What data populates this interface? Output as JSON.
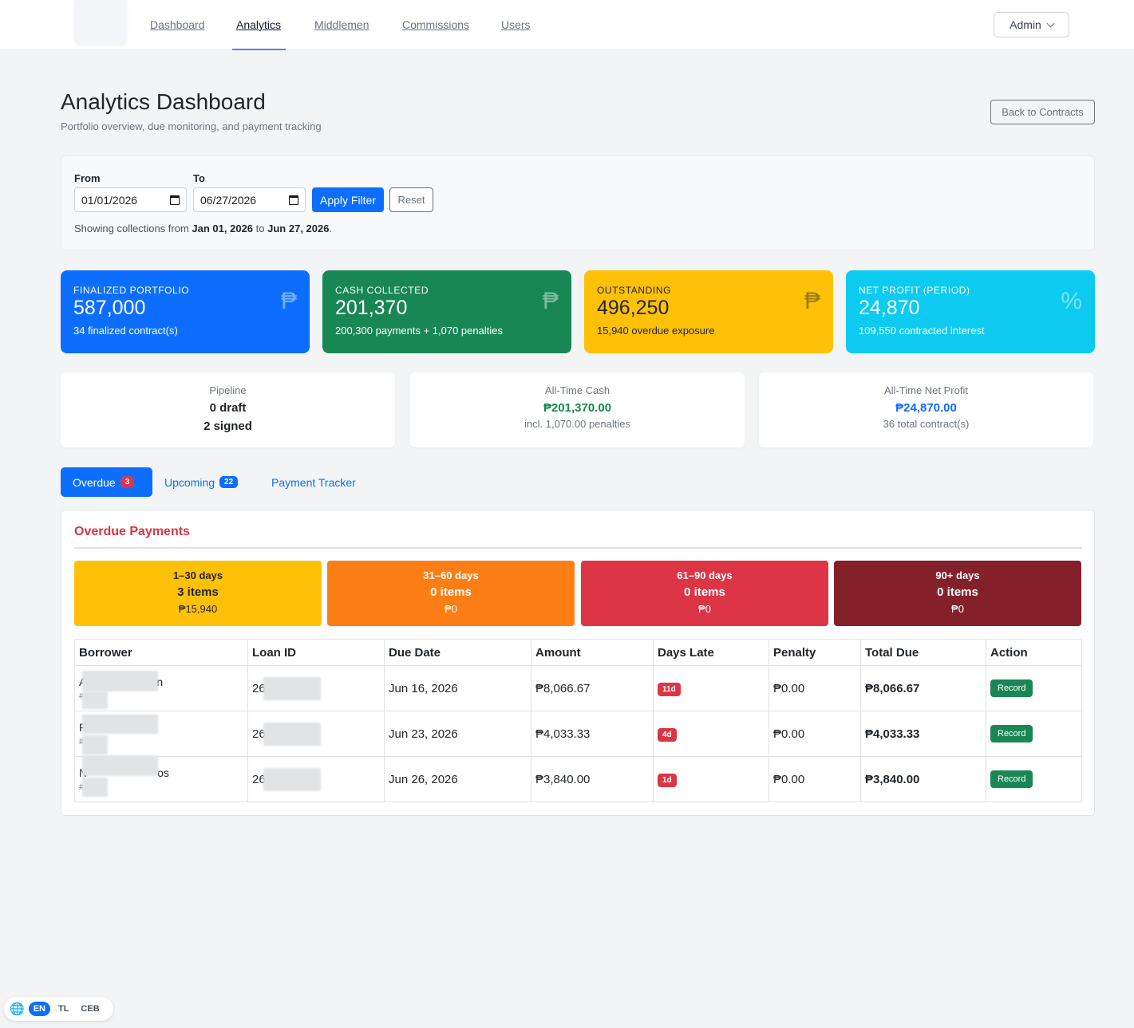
{
  "nav": {
    "links": [
      "Dashboard",
      "Analytics",
      "Middlemen",
      "Commissions",
      "Users"
    ],
    "active": "Analytics",
    "admin_label": "Admin"
  },
  "header": {
    "title": "Analytics Dashboard",
    "subtitle": "Portfolio overview, due monitoring, and payment tracking",
    "back_button": "Back to Contracts"
  },
  "filter": {
    "from_label": "From",
    "to_label": "To",
    "from_value": "01/01/2026",
    "to_value": "06/27/2026",
    "apply_label": "Apply Filter",
    "reset_label": "Reset",
    "note_prefix": "Showing collections from",
    "note_from": "Jan 01, 2026",
    "note_mid": "to",
    "note_to": "Jun 27, 2026",
    "note_suffix": "."
  },
  "stats": [
    {
      "label": "FINALIZED PORTFOLIO",
      "value": "587,000",
      "sub": "34 finalized contract(s)",
      "icon": "peso-icon",
      "glyph": "₱",
      "color": "#0d6efd"
    },
    {
      "label": "CASH COLLECTED",
      "value": "201,370",
      "sub": "200,300 payments + 1,070 penalties",
      "icon": "peso-icon",
      "glyph": "₱",
      "color": "#198754"
    },
    {
      "label": "OUTSTANDING",
      "value": "496,250",
      "sub": "15,940 overdue exposure",
      "icon": "peso-icon",
      "glyph": "₱",
      "color": "#ffc107"
    },
    {
      "label": "NET PROFIT (PERIOD)",
      "value": "24,870",
      "sub": "109,550 contracted interest",
      "icon": "percent-icon",
      "glyph": "%",
      "color": "#0dcaf0"
    }
  ],
  "mini": {
    "pipeline": {
      "title": "Pipeline",
      "line1": "0 draft",
      "line2": "2 signed"
    },
    "all_time_cash": {
      "title": "All-Time Cash",
      "value": "₱201,370.00",
      "sub": "incl. 1,070.00 penalties",
      "value_color": "#198754"
    },
    "all_time_profit": {
      "title": "All-Time Net Profit",
      "value": "₱24,870.00",
      "sub": "36 total contract(s)",
      "value_color": "#0d6efd"
    }
  },
  "tabs": [
    {
      "label": "Overdue",
      "count": "3",
      "active": true
    },
    {
      "label": "Upcoming",
      "count": "22",
      "active": false
    },
    {
      "label": "Payment Tracker",
      "count": "",
      "active": false
    }
  ],
  "overdue": {
    "title": "Overdue Payments",
    "buckets": [
      {
        "range": "1–30 days",
        "items": "3 items",
        "amount": "₱15,940",
        "color": "#ffc107"
      },
      {
        "range": "31–60 days",
        "items": "0 items",
        "amount": "₱0",
        "color": "#fd7e14"
      },
      {
        "range": "61–90 days",
        "items": "0 items",
        "amount": "₱0",
        "color": "#dc3545"
      },
      {
        "range": "90+ days",
        "items": "0 items",
        "amount": "₱0",
        "color": "#842029"
      }
    ],
    "columns": [
      "Borrower",
      "Loan ID",
      "Due Date",
      "Amount",
      "Days Late",
      "Penalty",
      "Total Due",
      "Action"
    ],
    "rows": [
      {
        "borrower_start": "A",
        "borrower_end": "n",
        "borrower_id": "#",
        "loan_prefix": "26",
        "due": "Jun 16, 2026",
        "amount": "₱8,066.67",
        "late": "11d",
        "penalty": "₱0.00",
        "total": "₱8,066.67",
        "action": "Record"
      },
      {
        "borrower_start": "F",
        "borrower_end": "",
        "borrower_id": "#",
        "loan_prefix": "26",
        "due": "Jun 23, 2026",
        "amount": "₱4,033.33",
        "late": "4d",
        "penalty": "₱0.00",
        "total": "₱4,033.33",
        "action": "Record"
      },
      {
        "borrower_start": "N",
        "borrower_end": "os",
        "borrower_id": "#",
        "loan_prefix": "26",
        "due": "Jun 26, 2026",
        "amount": "₱3,840.00",
        "late": "1d",
        "penalty": "₱0.00",
        "total": "₱3,840.00",
        "action": "Record"
      }
    ]
  },
  "language": {
    "items": [
      "EN",
      "TL",
      "CEB"
    ],
    "active": "EN",
    "icon": "globe-icon"
  }
}
